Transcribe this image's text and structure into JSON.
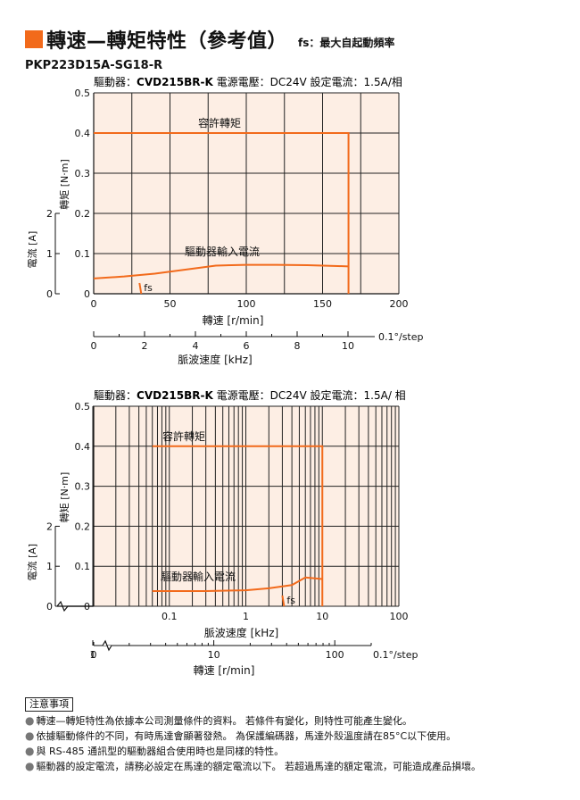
{
  "header": {
    "title": "轉速—轉矩特性（參考值）",
    "note": "fs：最大自起動頻率",
    "model": "PKP223D15A-SG18-R"
  },
  "colors": {
    "curve": "#f26a1b",
    "plot_bg": "#fdeee4",
    "grid": "#222222"
  },
  "chart_data": [
    {
      "type": "line",
      "condition": {
        "driver_label": "驅動器：",
        "driver": "CVD215BR-K",
        "voltage": "電源電壓：DC24V",
        "current": "設定電流：1.5A/相"
      },
      "x_scale": "linear",
      "xlabel": "轉速 [r/min]",
      "xlim": [
        0,
        200
      ],
      "x_ticks": [
        "0",
        "50",
        "100",
        "150",
        "200"
      ],
      "x2label": "脈波速度 [kHz]",
      "x2_ticks": [
        "0",
        "2",
        "4",
        "6",
        "8",
        "10"
      ],
      "x2_unit": "0.1°/step",
      "ylabel": "轉矩 [N·m]",
      "ylim": [
        0,
        0.5
      ],
      "y_ticks": [
        "0",
        "0.1",
        "0.2",
        "0.3",
        "0.4",
        "0.5"
      ],
      "y2label": "電流 [A]",
      "y2_ticks": [
        "0",
        "1",
        "2"
      ],
      "series": [
        {
          "name": "容許轉矩",
          "x": [
            0,
            125,
            167,
            167
          ],
          "y": [
            0.4,
            0.4,
            0.4,
            0
          ]
        },
        {
          "name": "驅動器輸入電流",
          "x": [
            0,
            20,
            40,
            60,
            80,
            100,
            120,
            140,
            160,
            167
          ],
          "y_current": [
            0.38,
            0.43,
            0.5,
            0.6,
            0.7,
            0.72,
            0.72,
            0.71,
            0.69,
            0.68
          ]
        }
      ],
      "fs_label": "fs",
      "fs": 30
    },
    {
      "type": "line",
      "condition": {
        "driver_label": "驅動器：",
        "driver": "CVD215BR-K",
        "voltage": "電源電壓：DC24V",
        "current": "設定電流：1.5A/ 相"
      },
      "x_scale": "log",
      "xlabel": "脈波速度 [kHz]",
      "x_ticks": [
        "0.1",
        "1",
        "10",
        "100"
      ],
      "x2label": "轉速 [r/min]",
      "x2_ticks": [
        "0",
        "1",
        "10",
        "100"
      ],
      "x2_unit": "0.1°/step",
      "ylabel": "轉矩 [N·m]",
      "ylim": [
        0,
        0.5
      ],
      "y_ticks": [
        "0",
        "0.1",
        "0.2",
        "0.3",
        "0.4",
        "0.5"
      ],
      "y2label": "電流 [A]",
      "y2_ticks": [
        "0",
        "1",
        "2"
      ],
      "series": [
        {
          "name": "容許轉矩",
          "x": [
            0.06,
            10,
            10
          ],
          "y": [
            0.4,
            0.4,
            0
          ]
        },
        {
          "name": "驅動器輸入電流",
          "x": [
            0.06,
            0.3,
            1,
            2,
            4,
            6,
            10
          ],
          "y_current": [
            0.38,
            0.38,
            0.4,
            0.45,
            0.53,
            0.72,
            0.68
          ]
        }
      ],
      "fs_label": "fs",
      "fs": 3
    }
  ],
  "notes": {
    "title": "注意事項",
    "items": [
      "轉速—轉矩特性為依據本公司測量條件的資料。 若條件有變化，則特性可能產生變化。",
      "依據驅動條件的不同，有時馬達會顯著發熱。 為保護編碼器，馬達外殼溫度請在85°C以下使用。",
      "與 RS-485 通訊型的驅動器組合使用時也是同樣的特性。",
      "驅動器的設定電流，請務必設定在馬達的額定電流以下。 若超過馬達的額定電流，可能造成產品損壞。"
    ]
  }
}
